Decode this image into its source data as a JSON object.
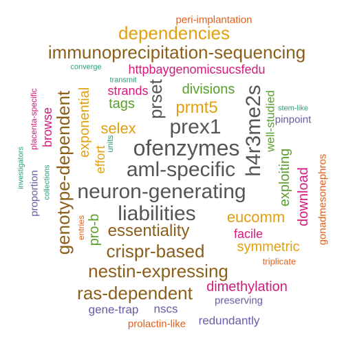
{
  "colors": {
    "background": "#ffffff",
    "brown": "#8b5e1a",
    "orange": "#e0a010",
    "gray": "#555555",
    "green": "#5a9e2c",
    "magenta": "#d41b7c",
    "purple": "#6a5aa8",
    "red_orange": "#e0601a",
    "teal": "#2a9d78"
  },
  "words": [
    {
      "text": "peri-implantation",
      "color": "#e0601a"
    },
    {
      "text": "dependencies",
      "color": "#e0a010"
    },
    {
      "text": "immunoprecipitation-sequencing",
      "color": "#8b5e1a"
    },
    {
      "text": "converge",
      "color": "#2a9d78"
    },
    {
      "text": "httpbaygenomicsucsfedu",
      "color": "#d41b7c"
    },
    {
      "text": "transmit",
      "color": "#2a9d78"
    },
    {
      "text": "strands",
      "color": "#d41b7c"
    },
    {
      "text": "divisions",
      "color": "#5a9e2c"
    },
    {
      "text": "tags",
      "color": "#5a9e2c"
    },
    {
      "text": "prmt5",
      "color": "#e0a010"
    },
    {
      "text": "stem-like",
      "color": "#2a9d78"
    },
    {
      "text": "pinpoint",
      "color": "#6a5aa8"
    },
    {
      "text": "selex",
      "color": "#e0a010"
    },
    {
      "text": "prex1",
      "color": "#555555"
    },
    {
      "text": "ofenzymes",
      "color": "#555555"
    },
    {
      "text": "aml-specific",
      "color": "#555555"
    },
    {
      "text": "neuron-generating",
      "color": "#555555"
    },
    {
      "text": "liabilities",
      "color": "#555555"
    },
    {
      "text": "eucomm",
      "color": "#e0a010"
    },
    {
      "text": "essentiality",
      "color": "#8b5e1a"
    },
    {
      "text": "facile",
      "color": "#d41b7c"
    },
    {
      "text": "crispr-based",
      "color": "#8b5e1a"
    },
    {
      "text": "symmetric",
      "color": "#e0a010"
    },
    {
      "text": "nestin-expressing",
      "color": "#8b5e1a"
    },
    {
      "text": "triplicate",
      "color": "#e0601a"
    },
    {
      "text": "dimethylation",
      "color": "#d41b7c"
    },
    {
      "text": "ras-dependent",
      "color": "#8b5e1a"
    },
    {
      "text": "preserving",
      "color": "#6a5aa8"
    },
    {
      "text": "gene-trap",
      "color": "#6a5aa8"
    },
    {
      "text": "nscs",
      "color": "#6a5aa8"
    },
    {
      "text": "redundantly",
      "color": "#6a5aa8"
    },
    {
      "text": "prolactin-like",
      "color": "#e0601a"
    },
    {
      "text": "genotype-dependent",
      "color": "#8b5e1a"
    },
    {
      "text": "exponential",
      "color": "#e0a010"
    },
    {
      "text": "browse",
      "color": "#d41b7c"
    },
    {
      "text": "placenta-specific",
      "color": "#d41b7c"
    },
    {
      "text": "investigators",
      "color": "#2a9d78"
    },
    {
      "text": "proportion",
      "color": "#6a5aa8"
    },
    {
      "text": "collections",
      "color": "#2a9d78"
    },
    {
      "text": "effort",
      "color": "#e0a010"
    },
    {
      "text": "units",
      "color": "#2a9d78"
    },
    {
      "text": "entries",
      "color": "#e0601a"
    },
    {
      "text": "pro-b",
      "color": "#5a9e2c"
    },
    {
      "text": "prset",
      "color": "#555555"
    },
    {
      "text": "h4r3me2s",
      "color": "#555555"
    },
    {
      "text": "well-studied",
      "color": "#5a9e2c"
    },
    {
      "text": "exploiting",
      "color": "#5a9e2c"
    },
    {
      "text": "download",
      "color": "#d41b7c"
    },
    {
      "text": "gonadmesonephros",
      "color": "#e0601a"
    }
  ]
}
